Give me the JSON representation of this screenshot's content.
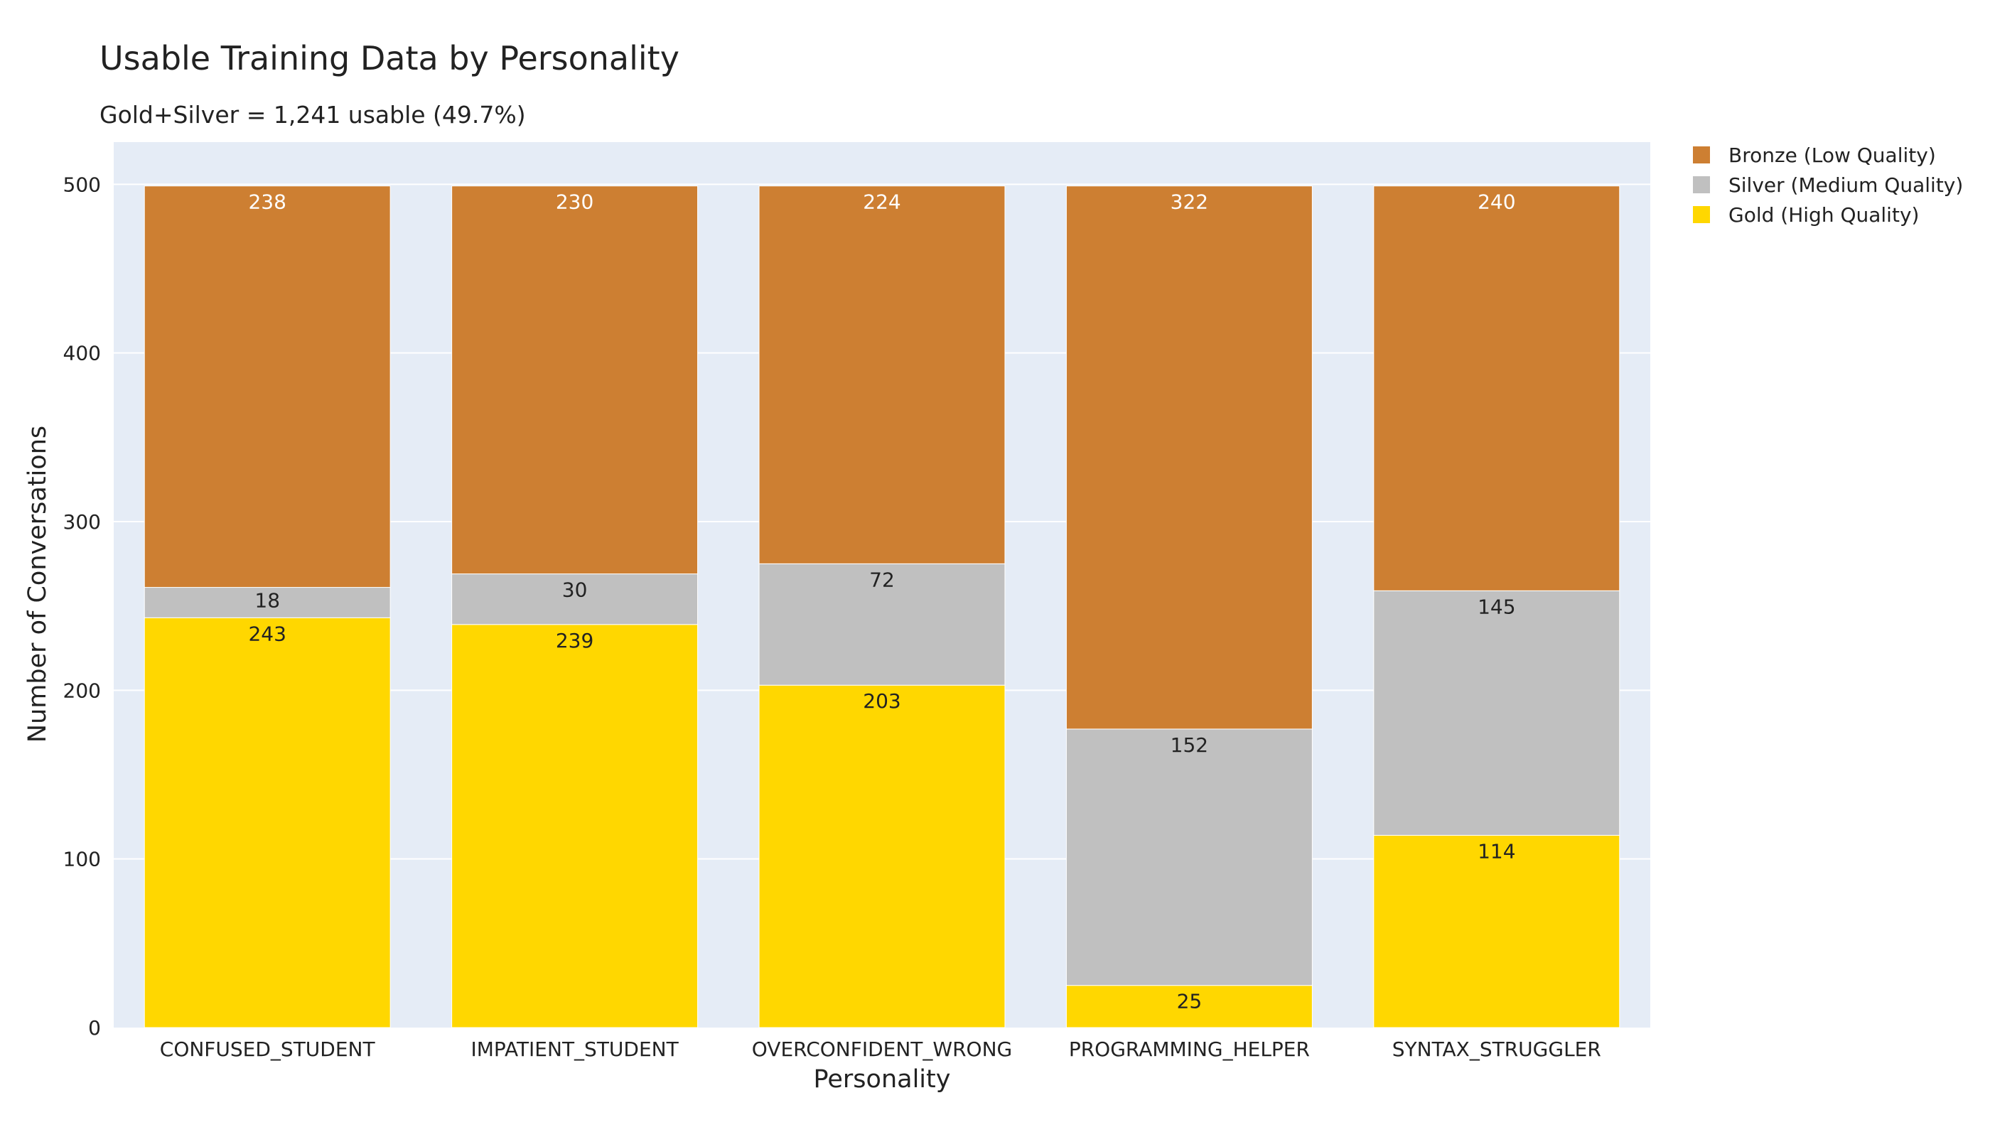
{
  "chart_data": {
    "type": "bar",
    "barmode": "stack",
    "title": "Usable Training Data by Personality",
    "subtitle": "Gold+Silver = 1,241 usable (49.7%)",
    "xlabel": "Personality",
    "ylabel": "Number of Conversations",
    "ylim": [
      0,
      525
    ],
    "yticks": [
      0,
      100,
      200,
      300,
      400,
      500
    ],
    "grid": true,
    "legend_position": "top-right",
    "categories": [
      "CONFUSED_STUDENT",
      "IMPATIENT_STUDENT",
      "OVERCONFIDENT_WRONG",
      "PROGRAMMING_HELPER",
      "SYNTAX_STRUGGLER"
    ],
    "series": [
      {
        "name": "Gold (High Quality)",
        "color": "#FFD700",
        "label_color": "#222222",
        "values": [
          243,
          239,
          203,
          25,
          114
        ]
      },
      {
        "name": "Silver (Medium Quality)",
        "color": "#C0C0C0",
        "label_color": "#222222",
        "values": [
          18,
          30,
          72,
          152,
          145
        ]
      },
      {
        "name": "Bronze (Low Quality)",
        "color": "#CD7F32",
        "label_color": "#ffffff",
        "values": [
          238,
          230,
          224,
          322,
          240
        ]
      }
    ],
    "colors": {
      "plot_background": "#E5ECF6",
      "gridline": "#ffffff"
    }
  }
}
